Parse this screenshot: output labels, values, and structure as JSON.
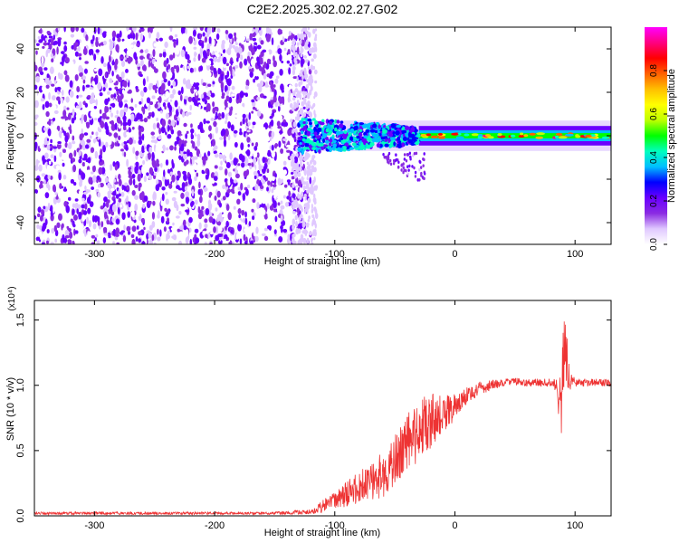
{
  "page_title": "C2E2.2025.302.02.27.G02",
  "chart_data": [
    {
      "type": "heatmap",
      "xlabel": "Height of straight line (km)",
      "ylabel": "Frequency (Hz)",
      "xlim": [
        -350,
        130
      ],
      "ylim": [
        -50,
        50
      ],
      "xticks": [
        -300,
        -200,
        -100,
        0,
        100
      ],
      "yticks": [
        -40,
        -20,
        0,
        20,
        40
      ],
      "colorbar": {
        "label": "Normalized spectral amplitude",
        "range": [
          0,
          1
        ],
        "ticks": [
          0.0,
          0.2,
          0.4,
          0.6,
          0.8
        ],
        "colors": [
          "#ffffff",
          "#e0c8ff",
          "#8a2be2",
          "#6a00ff",
          "#0000ff",
          "#00bfff",
          "#00ffbf",
          "#00ff00",
          "#bfff00",
          "#ffff00",
          "#ffbf00",
          "#ff6000",
          "#ff0000",
          "#ff0080",
          "#ff00ff"
        ]
      },
      "regions": [
        {
          "name": "noise",
          "x": [
            -350,
            -120
          ],
          "freq": [
            -50,
            50
          ],
          "amplitude": [
            0.0,
            0.25
          ]
        },
        {
          "name": "transition",
          "x": [
            -130,
            -30
          ],
          "freq": [
            -8,
            8
          ],
          "amplitude": [
            0.2,
            0.45
          ]
        },
        {
          "name": "tail",
          "x": [
            -60,
            -25
          ],
          "freq": [
            -22,
            -8
          ],
          "amplitude": [
            0.1,
            0.25
          ]
        },
        {
          "name": "carrier",
          "x": [
            -30,
            130
          ],
          "freq": [
            -3,
            3
          ],
          "amplitude": [
            0.35,
            0.9
          ]
        }
      ]
    },
    {
      "type": "line",
      "xlabel": "Height of straight line (km)",
      "ylabel": "SNR (10 * v/v)",
      "y_multiplier": "(x10⁴)",
      "xlim": [
        -350,
        130
      ],
      "ylim": [
        0,
        1.65
      ],
      "xticks": [
        -300,
        -200,
        -100,
        0,
        100
      ],
      "yticks": [
        0.0,
        0.5,
        1.0,
        1.5
      ],
      "series": [
        {
          "color": "#ee3333",
          "x": [
            -350,
            -300,
            -250,
            -200,
            -150,
            -120,
            -110,
            -100,
            -90,
            -80,
            -70,
            -60,
            -50,
            -40,
            -30,
            -20,
            -10,
            0,
            10,
            20,
            30,
            40,
            50,
            60,
            70,
            80,
            85,
            88,
            90,
            92,
            95,
            100,
            110,
            120,
            130
          ],
          "y": [
            0.02,
            0.02,
            0.02,
            0.02,
            0.02,
            0.03,
            0.07,
            0.12,
            0.17,
            0.22,
            0.26,
            0.32,
            0.42,
            0.55,
            0.66,
            0.72,
            0.77,
            0.84,
            0.92,
            0.97,
            1.0,
            1.02,
            1.03,
            1.02,
            1.02,
            1.02,
            1.0,
            0.8,
            1.05,
            1.3,
            1.05,
            1.02,
            1.02,
            1.02,
            1.02
          ],
          "noise": [
            0.01,
            0.01,
            0.01,
            0.01,
            0.01,
            0.02,
            0.05,
            0.07,
            0.1,
            0.12,
            0.15,
            0.18,
            0.2,
            0.22,
            0.25,
            0.22,
            0.15,
            0.1,
            0.07,
            0.05,
            0.04,
            0.03,
            0.03,
            0.03,
            0.03,
            0.03,
            0.05,
            0.3,
            0.35,
            0.3,
            0.1,
            0.03,
            0.03,
            0.03,
            0.03
          ]
        }
      ]
    }
  ]
}
